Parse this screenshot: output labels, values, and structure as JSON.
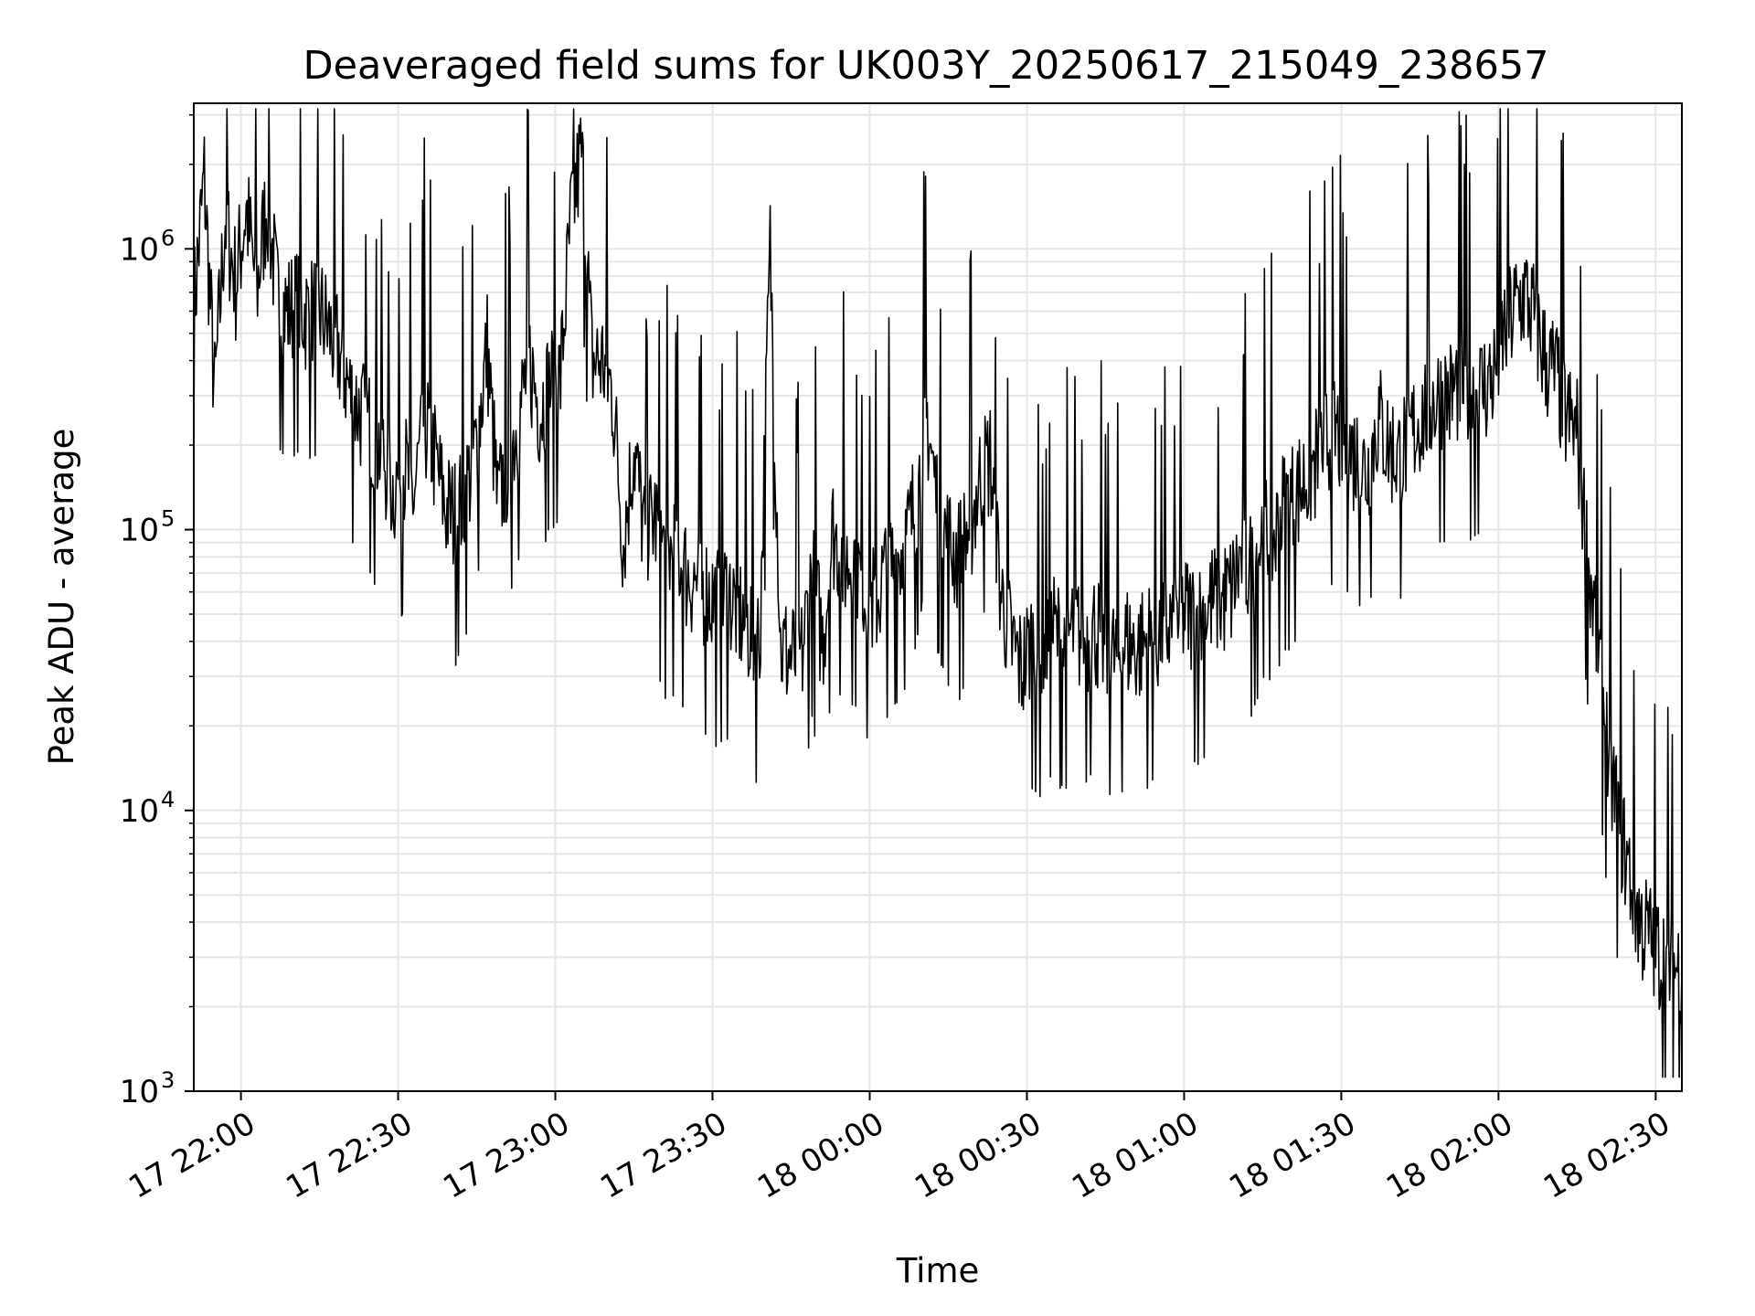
{
  "chart_data": {
    "type": "line",
    "title": "Deaveraged field sums for UK003Y_20250617_215049_238657",
    "xlabel": "Time",
    "ylabel": "Peak ADU - average",
    "x_scale": "time",
    "y_scale": "log",
    "xlim": [
      "2025-06-17 21:51",
      "2025-06-18 02:35"
    ],
    "ylim": [
      1000,
      3300000
    ],
    "grid": true,
    "legend": "none",
    "line_color": "#000000",
    "x_ticks": [
      {
        "time": "2025-06-17 22:00",
        "label": "17 22:00"
      },
      {
        "time": "2025-06-17 22:30",
        "label": "17 22:30"
      },
      {
        "time": "2025-06-17 23:00",
        "label": "17 23:00"
      },
      {
        "time": "2025-06-17 23:30",
        "label": "17 23:30"
      },
      {
        "time": "2025-06-18 00:00",
        "label": "18 00:00"
      },
      {
        "time": "2025-06-18 00:30",
        "label": "18 00:30"
      },
      {
        "time": "2025-06-18 01:00",
        "label": "18 01:00"
      },
      {
        "time": "2025-06-18 01:30",
        "label": "18 01:30"
      },
      {
        "time": "2025-06-18 02:00",
        "label": "18 02:00"
      },
      {
        "time": "2025-06-18 02:30",
        "label": "18 02:30"
      }
    ],
    "y_ticks": [
      {
        "value": 1000,
        "base": "10",
        "exp": "3"
      },
      {
        "value": 10000,
        "base": "10",
        "exp": "4"
      },
      {
        "value": 100000,
        "base": "10",
        "exp": "5"
      },
      {
        "value": 1000000,
        "base": "10",
        "exp": "6"
      }
    ],
    "series": [
      {
        "x": [
          "2025-06-17 21:51",
          "2025-06-17 21:53",
          "2025-06-17 21:55",
          "2025-06-17 21:57",
          "2025-06-17 21:59",
          "2025-06-17 22:01",
          "2025-06-17 22:03",
          "2025-06-17 22:05",
          "2025-06-17 22:07",
          "2025-06-17 22:09",
          "2025-06-17 22:11",
          "2025-06-17 22:13",
          "2025-06-17 22:15",
          "2025-06-17 22:17",
          "2025-06-17 22:19",
          "2025-06-17 22:21",
          "2025-06-17 22:23",
          "2025-06-17 22:25",
          "2025-06-17 22:27",
          "2025-06-17 22:29",
          "2025-06-17 22:31",
          "2025-06-17 22:33",
          "2025-06-17 22:35",
          "2025-06-17 22:37",
          "2025-06-17 22:39",
          "2025-06-17 22:41",
          "2025-06-17 22:43",
          "2025-06-17 22:45",
          "2025-06-17 22:47",
          "2025-06-17 22:49",
          "2025-06-17 22:51",
          "2025-06-17 22:53",
          "2025-06-17 22:55",
          "2025-06-17 22:57",
          "2025-06-17 22:59",
          "2025-06-17 23:01",
          "2025-06-17 23:03",
          "2025-06-17 23:05",
          "2025-06-17 23:07",
          "2025-06-17 23:09",
          "2025-06-17 23:11",
          "2025-06-17 23:13",
          "2025-06-17 23:15",
          "2025-06-17 23:17",
          "2025-06-17 23:19",
          "2025-06-17 23:21",
          "2025-06-17 23:23",
          "2025-06-17 23:25",
          "2025-06-17 23:27",
          "2025-06-17 23:29",
          "2025-06-17 23:31",
          "2025-06-17 23:33",
          "2025-06-17 23:35",
          "2025-06-17 23:37",
          "2025-06-17 23:39",
          "2025-06-17 23:41",
          "2025-06-17 23:43",
          "2025-06-17 23:45",
          "2025-06-17 23:47",
          "2025-06-17 23:49",
          "2025-06-17 23:51",
          "2025-06-17 23:53",
          "2025-06-17 23:55",
          "2025-06-17 23:57",
          "2025-06-17 23:59",
          "2025-06-18 00:01",
          "2025-06-18 00:03",
          "2025-06-18 00:05",
          "2025-06-18 00:07",
          "2025-06-18 00:09",
          "2025-06-18 00:11",
          "2025-06-18 00:13",
          "2025-06-18 00:15",
          "2025-06-18 00:17",
          "2025-06-18 00:19",
          "2025-06-18 00:21",
          "2025-06-18 00:23",
          "2025-06-18 00:25",
          "2025-06-18 00:27",
          "2025-06-18 00:29",
          "2025-06-18 00:31",
          "2025-06-18 00:33",
          "2025-06-18 00:35",
          "2025-06-18 00:37",
          "2025-06-18 00:39",
          "2025-06-18 00:41",
          "2025-06-18 00:43",
          "2025-06-18 00:45",
          "2025-06-18 00:47",
          "2025-06-18 00:49",
          "2025-06-18 00:51",
          "2025-06-18 00:53",
          "2025-06-18 00:55",
          "2025-06-18 00:57",
          "2025-06-18 00:59",
          "2025-06-18 01:01",
          "2025-06-18 01:03",
          "2025-06-18 01:05",
          "2025-06-18 01:07",
          "2025-06-18 01:09",
          "2025-06-18 01:11",
          "2025-06-18 01:13",
          "2025-06-18 01:15",
          "2025-06-18 01:17",
          "2025-06-18 01:19",
          "2025-06-18 01:21",
          "2025-06-18 01:23",
          "2025-06-18 01:25",
          "2025-06-18 01:27",
          "2025-06-18 01:29",
          "2025-06-18 01:31",
          "2025-06-18 01:33",
          "2025-06-18 01:35",
          "2025-06-18 01:37",
          "2025-06-18 01:39",
          "2025-06-18 01:41",
          "2025-06-18 01:43",
          "2025-06-18 01:45",
          "2025-06-18 01:47",
          "2025-06-18 01:49",
          "2025-06-18 01:51",
          "2025-06-18 01:53",
          "2025-06-18 01:55",
          "2025-06-18 01:57",
          "2025-06-18 01:59",
          "2025-06-18 02:01",
          "2025-06-18 02:03",
          "2025-06-18 02:05",
          "2025-06-18 02:07",
          "2025-06-18 02:09",
          "2025-06-18 02:11",
          "2025-06-18 02:13",
          "2025-06-18 02:15",
          "2025-06-18 02:17",
          "2025-06-18 02:19",
          "2025-06-18 02:21",
          "2025-06-18 02:23",
          "2025-06-18 02:25",
          "2025-06-18 02:27",
          "2025-06-18 02:29",
          "2025-06-18 02:31",
          "2025-06-18 02:33",
          "2025-06-18 02:35"
        ],
        "y": [
          600000,
          1800000,
          300000,
          1300000,
          750000,
          1400000,
          700000,
          1500000,
          650000,
          600000,
          620000,
          580000,
          600000,
          500000,
          420000,
          300000,
          260000,
          220000,
          190000,
          140000,
          170000,
          130000,
          250000,
          180000,
          120000,
          110000,
          140000,
          200000,
          450000,
          120000,
          180000,
          250000,
          400000,
          270000,
          330000,
          350000,
          1300000,
          2200000,
          400000,
          400000,
          300000,
          90000,
          200000,
          95000,
          110000,
          80000,
          85000,
          70000,
          65000,
          60000,
          55000,
          60000,
          50000,
          45000,
          40000,
          1000000,
          38000,
          35000,
          35000,
          70000,
          40000,
          100000,
          75000,
          80000,
          60000,
          55000,
          70000,
          80000,
          90000,
          130000,
          250000,
          120000,
          90000,
          80000,
          100000,
          150000,
          180000,
          60000,
          40000,
          32000,
          40000,
          35000,
          45000,
          38000,
          45000,
          40000,
          45000,
          38000,
          35000,
          40000,
          38000,
          40000,
          42000,
          45000,
          50000,
          50000,
          48000,
          55000,
          55000,
          60000,
          80000,
          70000,
          100000,
          90000,
          120000,
          130000,
          150000,
          170000,
          200000,
          220000,
          200000,
          180000,
          160000,
          250000,
          200000,
          180000,
          210000,
          250000,
          280000,
          300000,
          300000,
          350000,
          300000,
          320000,
          350000,
          500000,
          600000,
          700000,
          550000,
          400000,
          350000,
          250000,
          220000,
          80000,
          40000,
          15000,
          9000,
          6000,
          4000,
          3500,
          3000,
          2800,
          2700
        ],
        "values": [
          600000,
          1800000,
          300000,
          1300000,
          750000,
          1400000,
          700000,
          1500000,
          650000,
          600000,
          620000,
          580000,
          600000,
          500000,
          420000,
          300000,
          260000,
          220000,
          190000,
          140000,
          170000,
          130000,
          250000,
          180000,
          120000,
          110000,
          140000,
          200000,
          450000,
          120000,
          180000,
          250000,
          400000,
          270000,
          330000,
          350000,
          1300000,
          2200000,
          400000,
          400000,
          300000,
          90000,
          200000,
          95000,
          110000,
          80000,
          85000,
          70000,
          65000,
          60000,
          55000,
          60000,
          50000,
          45000,
          40000,
          1000000,
          38000,
          35000,
          35000,
          70000,
          40000,
          100000,
          75000,
          80000,
          60000,
          55000,
          70000,
          80000,
          90000,
          130000,
          250000,
          120000,
          90000,
          80000,
          100000,
          150000,
          180000,
          60000,
          40000,
          32000,
          40000,
          35000,
          45000,
          38000,
          45000,
          40000,
          45000,
          38000,
          35000,
          40000,
          38000,
          40000,
          42000,
          45000,
          50000,
          50000,
          48000,
          55000,
          55000,
          60000,
          80000,
          70000,
          100000,
          90000,
          120000,
          130000,
          150000,
          170000,
          200000,
          220000,
          200000,
          180000,
          160000,
          250000,
          200000,
          180000,
          210000,
          250000,
          280000,
          300000,
          300000,
          350000,
          300000,
          320000,
          350000,
          500000,
          600000,
          700000,
          550000,
          400000,
          350000,
          250000,
          220000,
          80000,
          40000,
          15000,
          9000,
          6000,
          4000,
          3500,
          3000,
          2800,
          2700
        ]
      }
    ]
  }
}
